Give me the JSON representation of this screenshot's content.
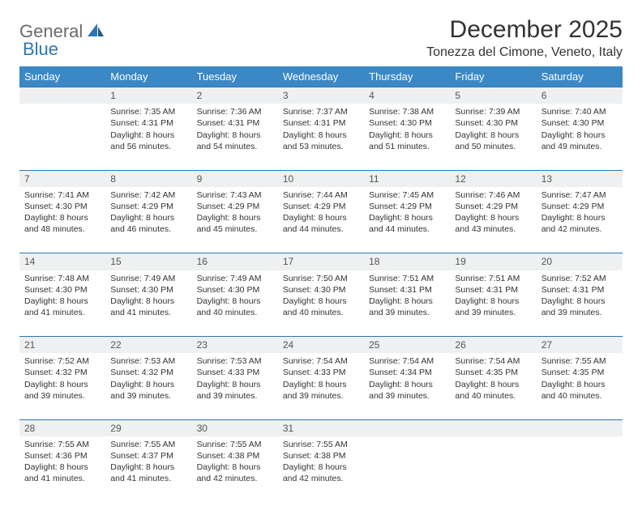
{
  "logo": {
    "part1": "General",
    "part2": "Blue"
  },
  "title": "December 2025",
  "location": "Tonezza del Cimone, Veneto, Italy",
  "colors": {
    "header_bg": "#3b88c4",
    "header_text": "#ffffff",
    "daynum_bg": "#eef0f1",
    "daynum_border": "#2d76b6",
    "logo_gray": "#6a6a6a",
    "logo_blue": "#2d76b6"
  },
  "weekdays": [
    "Sunday",
    "Monday",
    "Tuesday",
    "Wednesday",
    "Thursday",
    "Friday",
    "Saturday"
  ],
  "weeks": [
    {
      "nums": [
        "",
        "1",
        "2",
        "3",
        "4",
        "5",
        "6"
      ],
      "cells": [
        null,
        {
          "sunrise": "Sunrise: 7:35 AM",
          "sunset": "Sunset: 4:31 PM",
          "daylight": "Daylight: 8 hours and 56 minutes."
        },
        {
          "sunrise": "Sunrise: 7:36 AM",
          "sunset": "Sunset: 4:31 PM",
          "daylight": "Daylight: 8 hours and 54 minutes."
        },
        {
          "sunrise": "Sunrise: 7:37 AM",
          "sunset": "Sunset: 4:31 PM",
          "daylight": "Daylight: 8 hours and 53 minutes."
        },
        {
          "sunrise": "Sunrise: 7:38 AM",
          "sunset": "Sunset: 4:30 PM",
          "daylight": "Daylight: 8 hours and 51 minutes."
        },
        {
          "sunrise": "Sunrise: 7:39 AM",
          "sunset": "Sunset: 4:30 PM",
          "daylight": "Daylight: 8 hours and 50 minutes."
        },
        {
          "sunrise": "Sunrise: 7:40 AM",
          "sunset": "Sunset: 4:30 PM",
          "daylight": "Daylight: 8 hours and 49 minutes."
        }
      ]
    },
    {
      "nums": [
        "7",
        "8",
        "9",
        "10",
        "11",
        "12",
        "13"
      ],
      "cells": [
        {
          "sunrise": "Sunrise: 7:41 AM",
          "sunset": "Sunset: 4:30 PM",
          "daylight": "Daylight: 8 hours and 48 minutes."
        },
        {
          "sunrise": "Sunrise: 7:42 AM",
          "sunset": "Sunset: 4:29 PM",
          "daylight": "Daylight: 8 hours and 46 minutes."
        },
        {
          "sunrise": "Sunrise: 7:43 AM",
          "sunset": "Sunset: 4:29 PM",
          "daylight": "Daylight: 8 hours and 45 minutes."
        },
        {
          "sunrise": "Sunrise: 7:44 AM",
          "sunset": "Sunset: 4:29 PM",
          "daylight": "Daylight: 8 hours and 44 minutes."
        },
        {
          "sunrise": "Sunrise: 7:45 AM",
          "sunset": "Sunset: 4:29 PM",
          "daylight": "Daylight: 8 hours and 44 minutes."
        },
        {
          "sunrise": "Sunrise: 7:46 AM",
          "sunset": "Sunset: 4:29 PM",
          "daylight": "Daylight: 8 hours and 43 minutes."
        },
        {
          "sunrise": "Sunrise: 7:47 AM",
          "sunset": "Sunset: 4:29 PM",
          "daylight": "Daylight: 8 hours and 42 minutes."
        }
      ]
    },
    {
      "nums": [
        "14",
        "15",
        "16",
        "17",
        "18",
        "19",
        "20"
      ],
      "cells": [
        {
          "sunrise": "Sunrise: 7:48 AM",
          "sunset": "Sunset: 4:30 PM",
          "daylight": "Daylight: 8 hours and 41 minutes."
        },
        {
          "sunrise": "Sunrise: 7:49 AM",
          "sunset": "Sunset: 4:30 PM",
          "daylight": "Daylight: 8 hours and 41 minutes."
        },
        {
          "sunrise": "Sunrise: 7:49 AM",
          "sunset": "Sunset: 4:30 PM",
          "daylight": "Daylight: 8 hours and 40 minutes."
        },
        {
          "sunrise": "Sunrise: 7:50 AM",
          "sunset": "Sunset: 4:30 PM",
          "daylight": "Daylight: 8 hours and 40 minutes."
        },
        {
          "sunrise": "Sunrise: 7:51 AM",
          "sunset": "Sunset: 4:31 PM",
          "daylight": "Daylight: 8 hours and 39 minutes."
        },
        {
          "sunrise": "Sunrise: 7:51 AM",
          "sunset": "Sunset: 4:31 PM",
          "daylight": "Daylight: 8 hours and 39 minutes."
        },
        {
          "sunrise": "Sunrise: 7:52 AM",
          "sunset": "Sunset: 4:31 PM",
          "daylight": "Daylight: 8 hours and 39 minutes."
        }
      ]
    },
    {
      "nums": [
        "21",
        "22",
        "23",
        "24",
        "25",
        "26",
        "27"
      ],
      "cells": [
        {
          "sunrise": "Sunrise: 7:52 AM",
          "sunset": "Sunset: 4:32 PM",
          "daylight": "Daylight: 8 hours and 39 minutes."
        },
        {
          "sunrise": "Sunrise: 7:53 AM",
          "sunset": "Sunset: 4:32 PM",
          "daylight": "Daylight: 8 hours and 39 minutes."
        },
        {
          "sunrise": "Sunrise: 7:53 AM",
          "sunset": "Sunset: 4:33 PM",
          "daylight": "Daylight: 8 hours and 39 minutes."
        },
        {
          "sunrise": "Sunrise: 7:54 AM",
          "sunset": "Sunset: 4:33 PM",
          "daylight": "Daylight: 8 hours and 39 minutes."
        },
        {
          "sunrise": "Sunrise: 7:54 AM",
          "sunset": "Sunset: 4:34 PM",
          "daylight": "Daylight: 8 hours and 39 minutes."
        },
        {
          "sunrise": "Sunrise: 7:54 AM",
          "sunset": "Sunset: 4:35 PM",
          "daylight": "Daylight: 8 hours and 40 minutes."
        },
        {
          "sunrise": "Sunrise: 7:55 AM",
          "sunset": "Sunset: 4:35 PM",
          "daylight": "Daylight: 8 hours and 40 minutes."
        }
      ]
    },
    {
      "nums": [
        "28",
        "29",
        "30",
        "31",
        "",
        "",
        ""
      ],
      "cells": [
        {
          "sunrise": "Sunrise: 7:55 AM",
          "sunset": "Sunset: 4:36 PM",
          "daylight": "Daylight: 8 hours and 41 minutes."
        },
        {
          "sunrise": "Sunrise: 7:55 AM",
          "sunset": "Sunset: 4:37 PM",
          "daylight": "Daylight: 8 hours and 41 minutes."
        },
        {
          "sunrise": "Sunrise: 7:55 AM",
          "sunset": "Sunset: 4:38 PM",
          "daylight": "Daylight: 8 hours and 42 minutes."
        },
        {
          "sunrise": "Sunrise: 7:55 AM",
          "sunset": "Sunset: 4:38 PM",
          "daylight": "Daylight: 8 hours and 42 minutes."
        },
        null,
        null,
        null
      ]
    }
  ]
}
